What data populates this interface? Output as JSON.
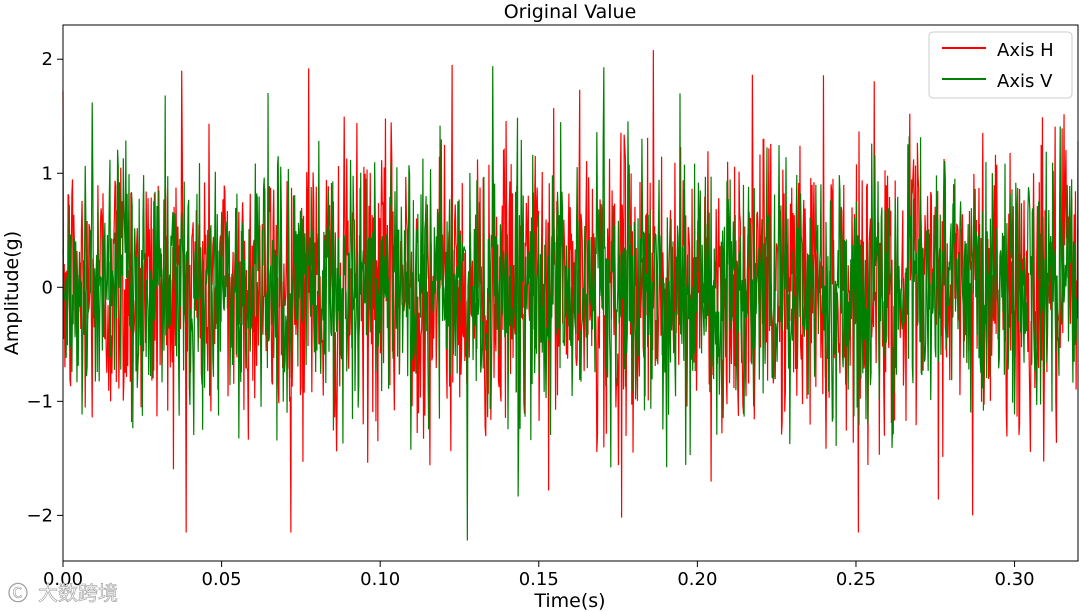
{
  "chart_data": {
    "type": "line",
    "title": "Original Value",
    "xlabel": "Time(s)",
    "ylabel": "Amplitude(g)",
    "xlim": [
      0.0,
      0.32
    ],
    "ylim": [
      -2.4,
      2.3
    ],
    "xticks": [
      0.0,
      0.05,
      0.1,
      0.15,
      0.2,
      0.25,
      0.3
    ],
    "xtick_labels": [
      "0.00",
      "0.05",
      "0.10",
      "0.15",
      "0.20",
      "0.25",
      "0.30"
    ],
    "yticks": [
      2,
      1,
      0,
      -1,
      -2
    ],
    "ytick_labels": [
      "2",
      "1",
      "0",
      "−1",
      "−2"
    ],
    "grid": false,
    "legend_position": "top-right",
    "series": [
      {
        "name": "Axis H",
        "color": "#ff0000",
        "description_points": {
          "sample_count": 1600,
          "peak_max_approx": [
            [
              0.0374,
              1.9
            ],
            [
              0.0775,
              1.92
            ],
            [
              0.1862,
              2.08
            ],
            [
              0.2868,
              -2.0
            ],
            [
              0.1762,
              -2.02
            ],
            [
              0.1226,
              1.95
            ]
          ]
        }
      },
      {
        "name": "Axis V",
        "color": "#008000",
        "description_points": {
          "sample_count": 1600,
          "peak_max_approx": [
            [
              0.1706,
              1.93
            ],
            [
              0.1275,
              -2.22
            ],
            [
              0.0093,
              1.62
            ],
            [
              0.1946,
              1.7
            ]
          ]
        }
      }
    ],
    "watermark": "大数跨境"
  }
}
